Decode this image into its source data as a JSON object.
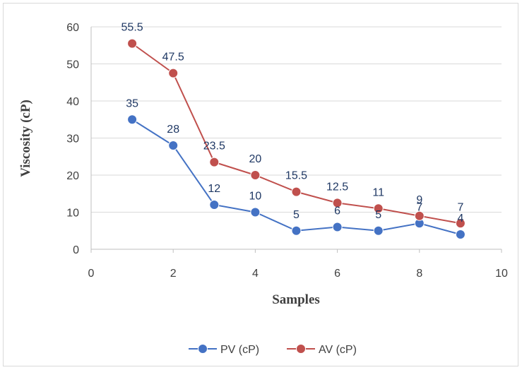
{
  "chart_data": {
    "type": "scatter",
    "title": "",
    "xlabel": "Samples",
    "ylabel": "Viscosity (cP)",
    "xlim": [
      0,
      10
    ],
    "ylim": [
      0,
      60
    ],
    "xticks": [
      0,
      2,
      4,
      6,
      8,
      10
    ],
    "yticks": [
      0,
      10,
      20,
      30,
      40,
      50,
      60
    ],
    "grid": "horizontal",
    "legend_position": "bottom",
    "series": [
      {
        "name": "PV (cP)",
        "color": "#4472c4",
        "x": [
          1,
          2,
          3,
          4,
          5,
          6,
          7,
          8,
          9
        ],
        "y": [
          35,
          28,
          12,
          10,
          5,
          6,
          5,
          7,
          4
        ],
        "labels": [
          "35",
          "28",
          "12",
          "10",
          "5",
          "6",
          "5",
          "7",
          "4"
        ]
      },
      {
        "name": "AV (cP)",
        "color": "#c0504d",
        "x": [
          1,
          2,
          3,
          4,
          5,
          6,
          7,
          8,
          9
        ],
        "y": [
          55.5,
          47.5,
          23.5,
          20,
          15.5,
          12.5,
          11,
          9,
          7
        ],
        "labels": [
          "55.5",
          "47.5",
          "23.5",
          "20",
          "15.5",
          "12.5",
          "11",
          "9",
          "7"
        ]
      }
    ]
  }
}
